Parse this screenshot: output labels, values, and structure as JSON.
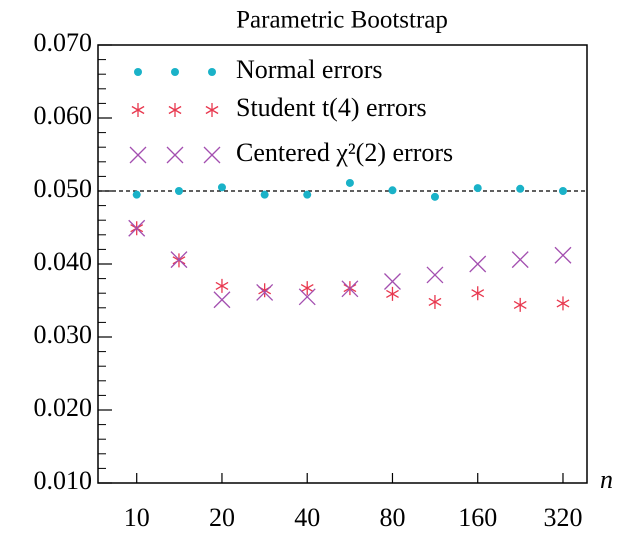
{
  "chart_data": {
    "type": "scatter",
    "title": "Parametric Bootstrap",
    "xlabel": "n",
    "x": [
      10,
      14.1,
      20,
      28.3,
      40,
      56.6,
      80,
      113,
      160,
      226,
      320
    ],
    "xscale": "log",
    "xlim": [
      7.3,
      389
    ],
    "xticks": [
      10,
      20,
      40,
      80,
      160,
      320
    ],
    "ylim": [
      0.01,
      0.07
    ],
    "yticks": [
      {
        "value": 0.01,
        "label": "0.010"
      },
      {
        "value": 0.02,
        "label": "0.020"
      },
      {
        "value": 0.03,
        "label": "0.030"
      },
      {
        "value": 0.04,
        "label": "0.040"
      },
      {
        "value": 0.05,
        "label": "0.050"
      },
      {
        "value": 0.06,
        "label": "0.060"
      },
      {
        "value": 0.07,
        "label": "0.070"
      }
    ],
    "yminor_ticks": [
      0.012,
      0.014,
      0.016,
      0.018,
      0.022,
      0.024,
      0.026,
      0.028,
      0.032,
      0.034,
      0.036,
      0.038,
      0.042,
      0.044,
      0.046,
      0.048,
      0.052,
      0.054,
      0.056,
      0.058,
      0.062,
      0.064,
      0.066,
      0.068
    ],
    "hline": 0.05,
    "legend": "upper left",
    "series": [
      {
        "name": "Normal errors",
        "color": "#1ab2c8",
        "marker": "dot",
        "values": [
          0.0495,
          0.05,
          0.0505,
          0.0495,
          0.0495,
          0.0511,
          0.0501,
          0.0492,
          0.0504,
          0.0503,
          0.05
        ]
      },
      {
        "name": "Student t(4) errors",
        "color": "#e8384f",
        "marker": "star",
        "values": [
          0.0449,
          0.0405,
          0.037,
          0.0364,
          0.0367,
          0.0367,
          0.0359,
          0.0348,
          0.036,
          0.0344,
          0.0346
        ]
      },
      {
        "name": "Centered χ²(2) errors",
        "color": "#a34fb0",
        "marker": "cross",
        "values": [
          0.0449,
          0.0406,
          0.0351,
          0.0361,
          0.0355,
          0.0366,
          0.0376,
          0.0385,
          0.04,
          0.0406,
          0.0412
        ]
      }
    ]
  }
}
